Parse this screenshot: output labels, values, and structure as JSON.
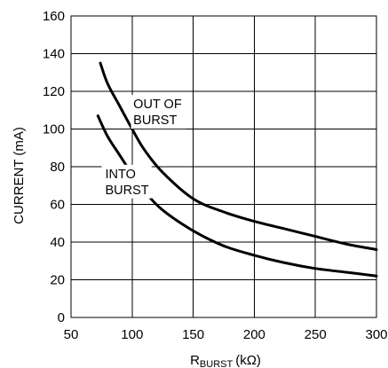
{
  "chart_data": {
    "type": "line",
    "title": "",
    "xlabel": {
      "main": "R",
      "sub": "BURST",
      "unit": "(kΩ)"
    },
    "ylabel": "CURRENT (mA)",
    "xlim": [
      50,
      300
    ],
    "ylim": [
      0,
      160
    ],
    "x_ticks": [
      50,
      100,
      150,
      200,
      250,
      300
    ],
    "y_ticks": [
      0,
      20,
      40,
      60,
      80,
      100,
      120,
      140,
      160
    ],
    "grid": true,
    "series_color": "#000000",
    "series": [
      {
        "name": "OUT OF BURST",
        "label_lines": [
          "OUT OF",
          "BURST"
        ],
        "x": [
          74,
          80,
          90,
          100,
          110,
          125,
          150,
          175,
          200,
          225,
          250,
          275,
          300
        ],
        "y": [
          135,
          124,
          112,
          100,
          89,
          77,
          63,
          56,
          51,
          47,
          43,
          39,
          36
        ]
      },
      {
        "name": "INTO BURST",
        "label_lines": [
          "INTO",
          "BURST"
        ],
        "x": [
          72,
          80,
          90,
          100,
          110,
          125,
          150,
          175,
          200,
          225,
          250,
          275,
          300
        ],
        "y": [
          107,
          96,
          86,
          76,
          67,
          57,
          46,
          38,
          33,
          29,
          26,
          24,
          22
        ]
      }
    ]
  }
}
